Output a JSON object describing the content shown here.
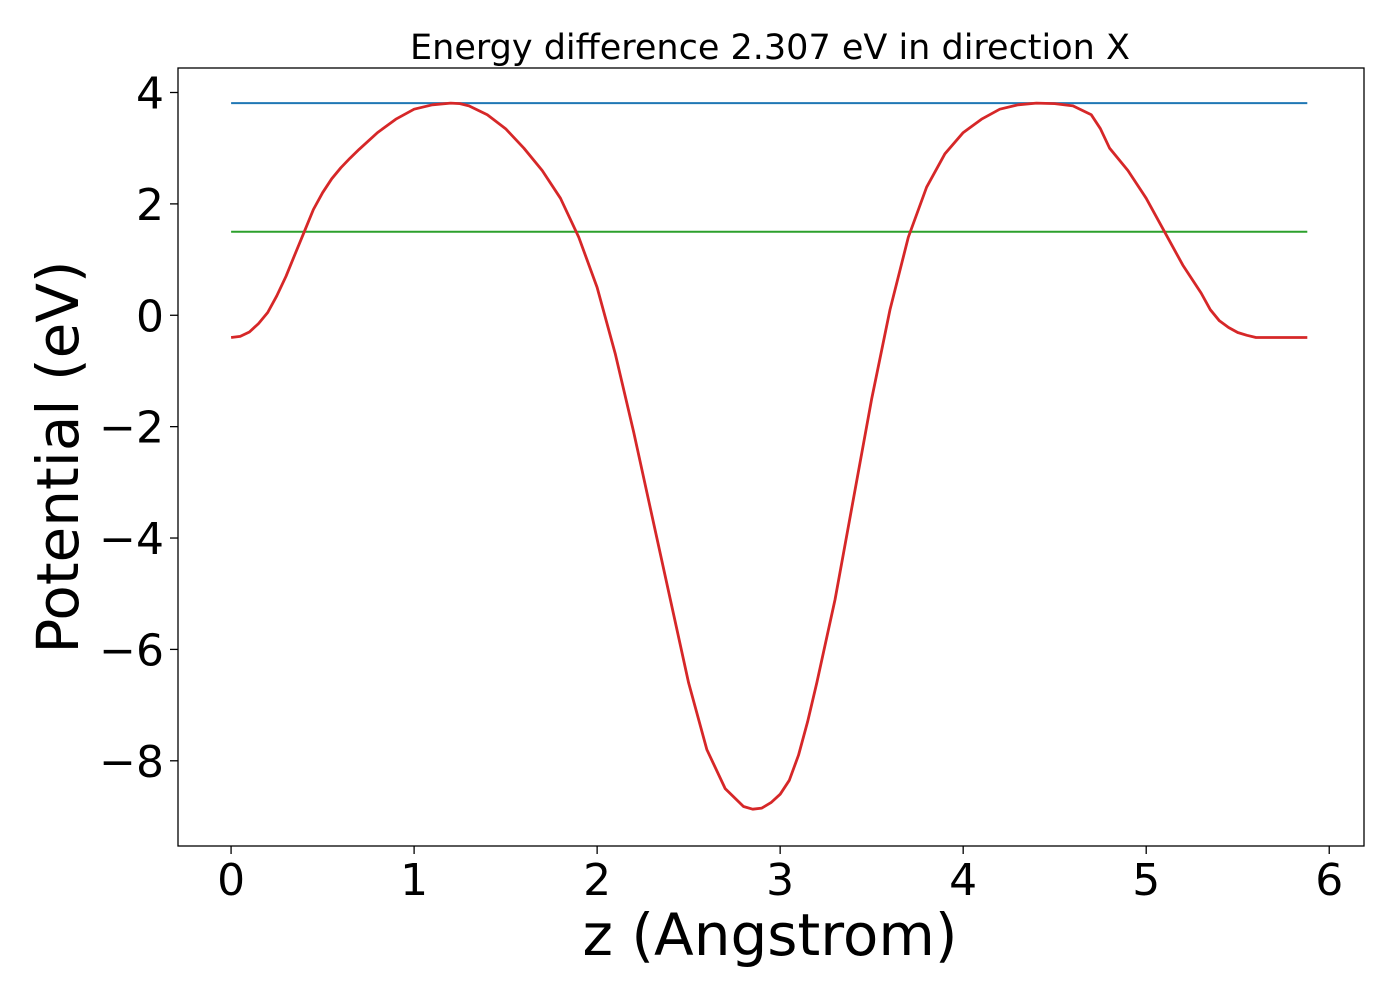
{
  "chart_data": {
    "type": "line",
    "title": "Energy difference 2.307 eV in direction X",
    "xlabel": "z (Angstrom)",
    "ylabel": "Potential (eV)",
    "xlim": [
      -0.29,
      6.19
    ],
    "ylim": [
      -9.53,
      4.44
    ],
    "xticks": [
      0,
      1,
      2,
      3,
      4,
      5,
      6
    ],
    "xtick_labels": [
      "0",
      "1",
      "2",
      "3",
      "4",
      "5",
      "6"
    ],
    "yticks": [
      4,
      2,
      0,
      -2,
      -4,
      -6,
      -8
    ],
    "ytick_labels": [
      "4",
      "2",
      "0",
      "−2",
      "−4",
      "−6",
      "−8"
    ],
    "grid": false,
    "legend": "none",
    "series": [
      {
        "color": "#d62728",
        "style": "solid",
        "x": [
          0.0,
          0.05,
          0.1,
          0.15,
          0.2,
          0.25,
          0.3,
          0.35,
          0.4,
          0.45,
          0.5,
          0.55,
          0.6,
          0.65,
          0.7,
          0.8,
          0.9,
          1.0,
          1.1,
          1.2,
          1.25,
          1.3,
          1.4,
          1.5,
          1.6,
          1.7,
          1.8,
          1.9,
          2.0,
          2.1,
          2.2,
          2.3,
          2.4,
          2.5,
          2.6,
          2.7,
          2.8,
          2.85,
          2.9,
          2.95,
          3.0,
          3.05,
          3.1,
          3.15,
          3.2,
          3.3,
          3.4,
          3.5,
          3.6,
          3.7,
          3.8,
          3.9,
          4.0,
          4.1,
          4.2,
          4.3,
          4.4,
          4.5,
          4.6,
          4.7,
          4.75,
          4.8,
          4.9,
          5.0,
          5.1,
          5.2,
          5.3,
          5.35,
          5.4,
          5.45,
          5.5,
          5.55,
          5.6,
          5.65,
          5.7,
          5.75,
          5.8,
          5.85,
          5.88
        ],
        "y": [
          -0.4,
          -0.38,
          -0.3,
          -0.15,
          0.05,
          0.35,
          0.7,
          1.1,
          1.5,
          1.9,
          2.2,
          2.45,
          2.65,
          2.82,
          2.98,
          3.28,
          3.52,
          3.7,
          3.78,
          3.81,
          3.8,
          3.76,
          3.6,
          3.35,
          3.0,
          2.6,
          2.1,
          1.4,
          0.5,
          -0.7,
          -2.1,
          -3.6,
          -5.1,
          -6.6,
          -7.8,
          -8.5,
          -8.82,
          -8.87,
          -8.85,
          -8.75,
          -8.6,
          -8.35,
          -7.9,
          -7.3,
          -6.6,
          -5.1,
          -3.3,
          -1.5,
          0.1,
          1.4,
          2.3,
          2.9,
          3.28,
          3.52,
          3.7,
          3.78,
          3.81,
          3.8,
          3.76,
          3.6,
          3.35,
          3.0,
          2.6,
          2.1,
          1.5,
          0.9,
          0.4,
          0.1,
          -0.1,
          -0.22,
          -0.31,
          -0.36,
          -0.4,
          -0.4,
          -0.4,
          -0.4,
          -0.4,
          -0.4,
          -0.4
        ]
      },
      {
        "color": "#1f77b4",
        "style": "solid",
        "x": [
          0.0,
          5.88
        ],
        "y": [
          3.81,
          3.81
        ]
      },
      {
        "color": "#2ca02c",
        "style": "solid",
        "x": [
          0.0,
          5.88
        ],
        "y": [
          1.5,
          1.5
        ]
      }
    ]
  }
}
